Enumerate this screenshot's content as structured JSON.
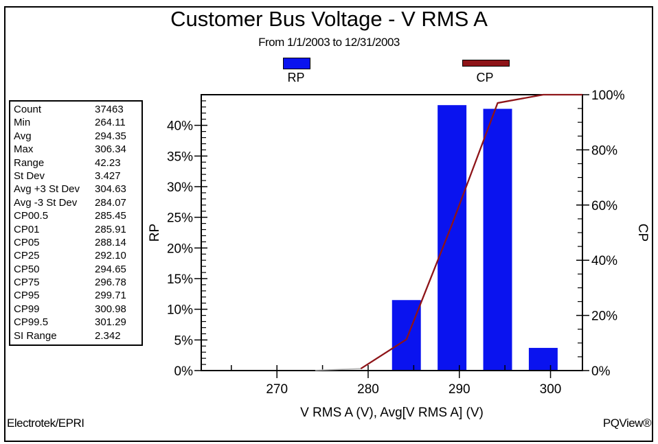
{
  "page": {
    "title": "Customer Bus Voltage - V RMS A",
    "subtitle": "From 1/1/2003 to 12/31/2003",
    "footer_left": "Electrotek/EPRI",
    "footer_right": "PQView®"
  },
  "legend": {
    "rp_label": "RP",
    "cp_label": "CP",
    "rp_color": "#0a13ef",
    "cp_color": "#8e1418"
  },
  "stats_table": {
    "rows": [
      {
        "label": "Count",
        "value": "37463"
      },
      {
        "label": "Min",
        "value": "264.11"
      },
      {
        "label": "Avg",
        "value": "294.35"
      },
      {
        "label": "Max",
        "value": "306.34"
      },
      {
        "label": "Range",
        "value": "42.23"
      },
      {
        "label": "St Dev",
        "value": "3.427"
      },
      {
        "label": "Avg +3 St Dev",
        "value": "304.63"
      },
      {
        "label": "Avg -3 St Dev",
        "value": "284.07"
      },
      {
        "label": "CP00.5",
        "value": "285.45"
      },
      {
        "label": "CP01",
        "value": "285.91"
      },
      {
        "label": "CP05",
        "value": "288.14"
      },
      {
        "label": "CP25",
        "value": "292.10"
      },
      {
        "label": "CP50",
        "value": "294.65"
      },
      {
        "label": "CP75",
        "value": "296.78"
      },
      {
        "label": "CP95",
        "value": "299.71"
      },
      {
        "label": "CP99",
        "value": "300.98"
      },
      {
        "label": "CP99.5",
        "value": "301.29"
      },
      {
        "label": "SI Range",
        "value": "2.342"
      }
    ]
  },
  "chart_data": {
    "type": "bar",
    "title": "Customer Bus Voltage - V RMS A",
    "subtitle": "From 1/1/2003 to 12/31/2003",
    "xlabel": "V RMS A (V), Avg[V RMS A] (V)",
    "axes": {
      "x": {
        "range": [
          261.7,
          303.5
        ],
        "major_ticks": [
          270,
          280,
          290,
          300
        ],
        "minor_ticks": [
          265,
          275,
          285,
          295
        ],
        "tick_format": "number"
      },
      "y_left": {
        "label": "RP",
        "range": [
          0,
          45
        ],
        "major_step": 5,
        "minor_step": 1,
        "tick_format": "percent",
        "labeled_max": 40
      },
      "y_right": {
        "label": "CP",
        "range": [
          0,
          100
        ],
        "major_step": 20,
        "minor_step": 5,
        "tick_format": "percent"
      }
    },
    "bars": {
      "name": "RP",
      "color": "#0a13ef",
      "bin_width_v": 5,
      "bar_draw_width_v": 3.16,
      "x": [
        284.2,
        289.2,
        294.2,
        299.2
      ],
      "values": [
        11.5,
        43.3,
        42.7,
        3.7
      ]
    },
    "line": {
      "name": "CP",
      "color": "#8e1418",
      "faint_color": "#b4b4b4",
      "faint_until_x": 279.2,
      "points": [
        [
          274.2,
          0.1
        ],
        [
          279.2,
          0.7
        ],
        [
          284.2,
          11.3
        ],
        [
          289.2,
          53.0
        ],
        [
          294.2,
          97.0
        ],
        [
          299.2,
          100.0
        ],
        [
          303.5,
          100.0
        ]
      ]
    },
    "grid": false,
    "legend_position": "top-center"
  }
}
